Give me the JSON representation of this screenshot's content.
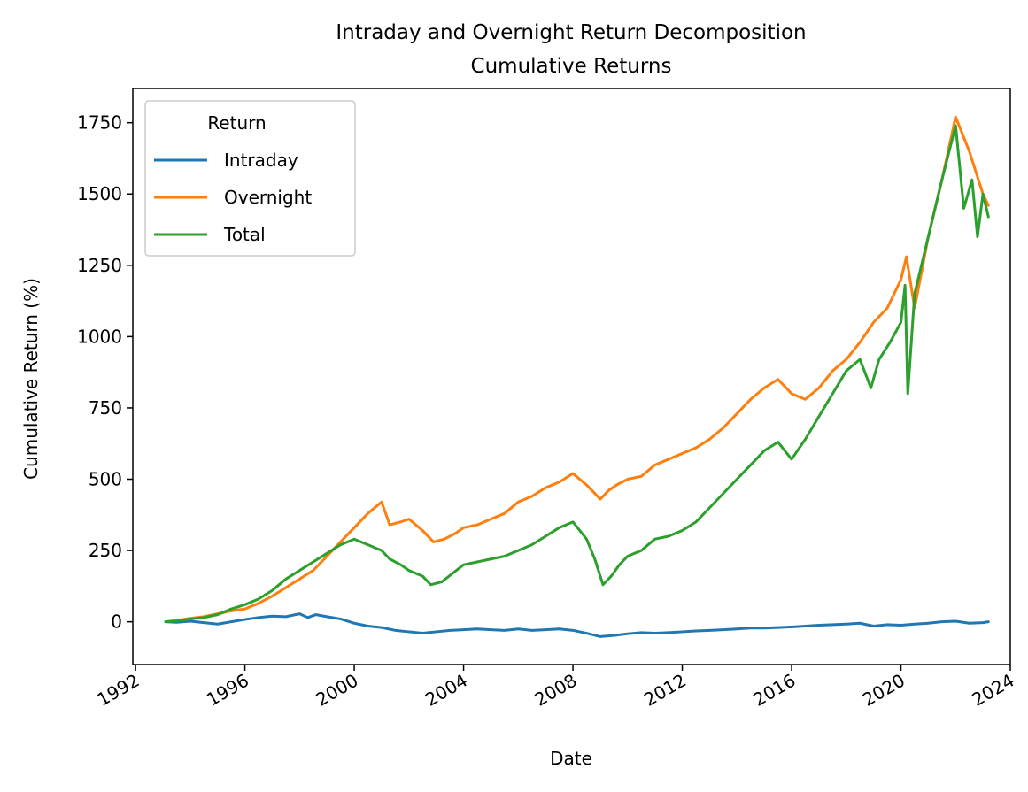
{
  "chart_data": {
    "type": "line",
    "title": "Intraday and Overnight Return Decomposition",
    "subtitle": "Cumulative Returns",
    "xlabel": "Date",
    "ylabel": "Cumulative Return (%)",
    "xlim": [
      1991.9,
      2024.0
    ],
    "ylim": [
      -150,
      1870
    ],
    "x_ticks": [
      1992,
      1996,
      2000,
      2004,
      2008,
      2012,
      2016,
      2020,
      2024
    ],
    "x_tick_labels": [
      "1992",
      "1996",
      "2000",
      "2004",
      "2008",
      "2012",
      "2016",
      "2020",
      "2024"
    ],
    "y_ticks": [
      0,
      250,
      500,
      750,
      1000,
      1250,
      1500,
      1750
    ],
    "y_tick_labels": [
      "0",
      "250",
      "500",
      "750",
      "1000",
      "1250",
      "1500",
      "1750"
    ],
    "grid": false,
    "legend": {
      "title": "Return",
      "placement": "upper-left"
    },
    "series": [
      {
        "name": "Intraday",
        "color": "#1f77b4",
        "x": [
          1993.1,
          1993.5,
          1994.0,
          1994.5,
          1995.0,
          1995.5,
          1996.0,
          1996.5,
          1997.0,
          1997.5,
          1998.0,
          1998.3,
          1998.6,
          1999.0,
          1999.5,
          2000.0,
          2000.5,
          2001.0,
          2001.5,
          2002.0,
          2002.5,
          2003.0,
          2003.5,
          2004.0,
          2004.5,
          2005.0,
          2005.5,
          2006.0,
          2006.5,
          2007.0,
          2007.5,
          2008.0,
          2008.5,
          2009.0,
          2009.5,
          2010.0,
          2010.5,
          2011.0,
          2011.5,
          2012.0,
          2012.5,
          2013.0,
          2013.5,
          2014.0,
          2014.5,
          2015.0,
          2015.5,
          2016.0,
          2016.5,
          2017.0,
          2017.5,
          2018.0,
          2018.5,
          2019.0,
          2019.5,
          2020.0,
          2020.5,
          2021.0,
          2021.5,
          2022.0,
          2022.5,
          2023.0,
          2023.2
        ],
        "y": [
          0,
          -2,
          2,
          -3,
          -8,
          0,
          8,
          15,
          20,
          18,
          28,
          15,
          25,
          18,
          10,
          -5,
          -15,
          -20,
          -30,
          -35,
          -40,
          -35,
          -30,
          -28,
          -25,
          -28,
          -30,
          -25,
          -30,
          -28,
          -25,
          -30,
          -40,
          -52,
          -48,
          -42,
          -38,
          -40,
          -38,
          -35,
          -32,
          -30,
          -28,
          -25,
          -22,
          -22,
          -20,
          -18,
          -15,
          -12,
          -10,
          -8,
          -5,
          -15,
          -10,
          -12,
          -8,
          -5,
          0,
          2,
          -5,
          -3,
          0
        ]
      },
      {
        "name": "Overnight",
        "color": "#ff7f0e",
        "x": [
          1993.1,
          1993.5,
          1994.0,
          1994.5,
          1995.0,
          1995.5,
          1996.0,
          1996.5,
          1997.0,
          1997.5,
          1998.0,
          1998.5,
          1999.0,
          1999.5,
          2000.0,
          2000.5,
          2001.0,
          2001.3,
          2001.7,
          2002.0,
          2002.5,
          2002.9,
          2003.3,
          2003.7,
          2004.0,
          2004.5,
          2005.0,
          2005.5,
          2006.0,
          2006.5,
          2007.0,
          2007.5,
          2008.0,
          2008.5,
          2009.0,
          2009.3,
          2009.6,
          2010.0,
          2010.5,
          2011.0,
          2011.5,
          2012.0,
          2012.5,
          2013.0,
          2013.5,
          2014.0,
          2014.5,
          2015.0,
          2015.5,
          2016.0,
          2016.5,
          2017.0,
          2017.5,
          2018.0,
          2018.5,
          2019.0,
          2019.5,
          2020.0,
          2020.2,
          2020.5,
          2021.0,
          2021.5,
          2022.0,
          2022.5,
          2023.0,
          2023.2
        ],
        "y": [
          0,
          5,
          12,
          18,
          28,
          38,
          45,
          65,
          90,
          120,
          150,
          180,
          230,
          280,
          330,
          380,
          420,
          340,
          350,
          360,
          320,
          280,
          290,
          310,
          330,
          340,
          360,
          380,
          420,
          440,
          470,
          490,
          520,
          480,
          430,
          460,
          480,
          500,
          510,
          550,
          570,
          590,
          610,
          640,
          680,
          730,
          780,
          820,
          850,
          800,
          780,
          820,
          880,
          920,
          980,
          1050,
          1100,
          1200,
          1280,
          1100,
          1350,
          1550,
          1770,
          1650,
          1500,
          1460
        ]
      },
      {
        "name": "Total",
        "color": "#2ca02c",
        "x": [
          1993.1,
          1993.5,
          1994.0,
          1994.5,
          1995.0,
          1995.5,
          1996.0,
          1996.5,
          1997.0,
          1997.5,
          1998.0,
          1998.5,
          1999.0,
          1999.5,
          2000.0,
          2000.5,
          2001.0,
          2001.3,
          2001.7,
          2002.0,
          2002.5,
          2002.8,
          2003.2,
          2003.6,
          2004.0,
          2004.5,
          2005.0,
          2005.5,
          2006.0,
          2006.5,
          2007.0,
          2007.5,
          2008.0,
          2008.5,
          2008.8,
          2009.1,
          2009.4,
          2009.7,
          2010.0,
          2010.5,
          2011.0,
          2011.5,
          2012.0,
          2012.5,
          2013.0,
          2013.5,
          2014.0,
          2014.5,
          2015.0,
          2015.5,
          2016.0,
          2016.5,
          2017.0,
          2017.5,
          2018.0,
          2018.5,
          2018.9,
          2019.2,
          2019.6,
          2020.0,
          2020.15,
          2020.25,
          2020.5,
          2021.0,
          2021.5,
          2022.0,
          2022.3,
          2022.6,
          2022.8,
          2023.0,
          2023.2
        ],
        "y": [
          0,
          3,
          10,
          15,
          25,
          45,
          60,
          80,
          110,
          150,
          180,
          210,
          240,
          270,
          290,
          270,
          250,
          220,
          200,
          180,
          160,
          130,
          140,
          170,
          200,
          210,
          220,
          230,
          250,
          270,
          300,
          330,
          350,
          290,
          220,
          130,
          160,
          200,
          230,
          250,
          290,
          300,
          320,
          350,
          400,
          450,
          500,
          550,
          600,
          630,
          570,
          640,
          720,
          800,
          880,
          920,
          820,
          920,
          980,
          1050,
          1180,
          800,
          1150,
          1350,
          1550,
          1740,
          1450,
          1550,
          1350,
          1500,
          1420
        ]
      }
    ]
  }
}
